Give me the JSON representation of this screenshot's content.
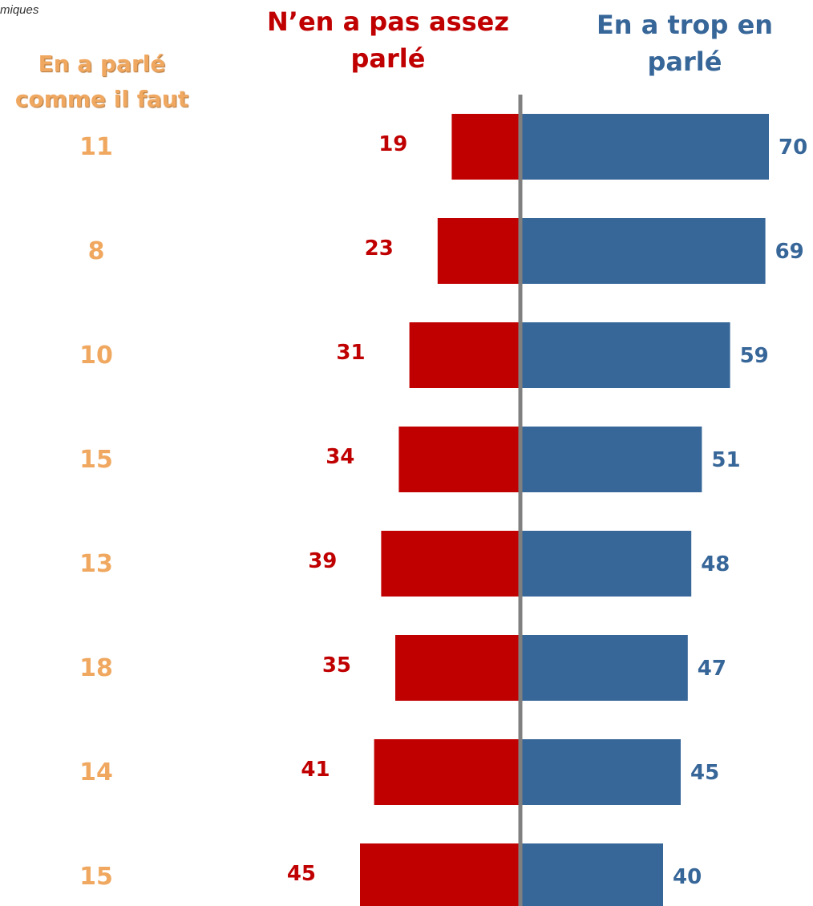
{
  "note": "miques",
  "chart_data": {
    "type": "bar",
    "orientation": "diverging-horizontal",
    "headers": {
      "left": [
        "N’en a pas assez",
        "parlé"
      ],
      "right": [
        "En a trop en",
        "parlé"
      ],
      "middle": [
        "En a parlé",
        "comme il faut"
      ]
    },
    "series": [
      {
        "name": "N’en a pas assez parlé",
        "values": [
          19,
          23,
          31,
          34,
          39,
          35,
          41,
          45
        ]
      },
      {
        "name": "En a trop en parlé",
        "values": [
          70,
          69,
          59,
          51,
          48,
          47,
          45,
          40
        ]
      },
      {
        "name": "En a parlé comme il faut",
        "values": [
          11,
          8,
          10,
          15,
          13,
          18,
          14,
          15
        ]
      }
    ],
    "colors": {
      "left": "#c00000",
      "right": "#376699",
      "middle": "#f0a860",
      "axis": "#808080"
    }
  }
}
